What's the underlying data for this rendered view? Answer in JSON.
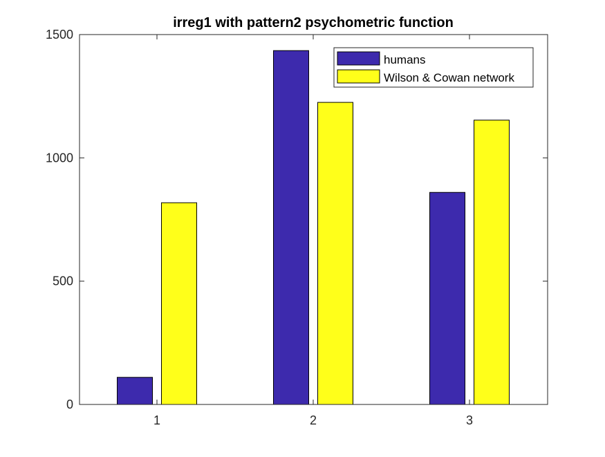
{
  "chart_data": {
    "type": "bar",
    "title": "irreg1 with pattern2 psychometric function",
    "xlabel": "",
    "ylabel": "",
    "categories": [
      "1",
      "2",
      "3"
    ],
    "ylim": [
      0,
      1500
    ],
    "yticks": [
      0,
      500,
      1000,
      1500
    ],
    "grid": false,
    "legend_position": "top-right",
    "series": [
      {
        "name": "humans",
        "color": "#3d2aad",
        "values": [
          110,
          1435,
          860
        ]
      },
      {
        "name": "Wilson & Cowan network",
        "color": "#ffff1a",
        "values": [
          818,
          1225,
          1153
        ]
      }
    ]
  }
}
